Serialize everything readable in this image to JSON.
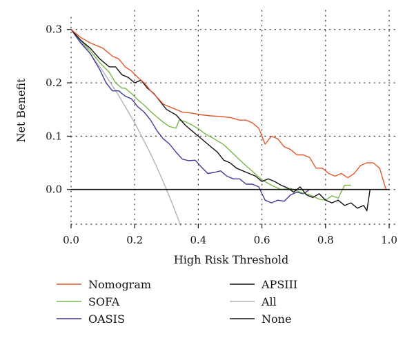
{
  "chart_data": {
    "type": "line",
    "xlabel": "High Risk Threshold",
    "ylabel": "Net Benefit",
    "xlim": [
      0.0,
      1.0
    ],
    "ylim": [
      -0.065,
      0.31
    ],
    "x_ticks": [
      "0.0",
      "0.2",
      "0.4",
      "0.6",
      "0.8",
      "1.0"
    ],
    "y_ticks": [
      "0.0",
      "0.1",
      "0.2",
      "0.3"
    ],
    "grid": "dotted",
    "legend_position": "bottom",
    "series": [
      {
        "name": "Nomogram",
        "color": "#e2562b",
        "x": [
          0,
          0.03,
          0.06,
          0.1,
          0.13,
          0.15,
          0.17,
          0.19,
          0.21,
          0.23,
          0.25,
          0.27,
          0.29,
          0.31,
          0.33,
          0.35,
          0.38,
          0.41,
          0.44,
          0.47,
          0.5,
          0.53,
          0.55,
          0.57,
          0.59,
          0.61,
          0.63,
          0.65,
          0.67,
          0.69,
          0.71,
          0.73,
          0.75,
          0.77,
          0.79,
          0.81,
          0.83,
          0.85,
          0.87,
          0.89,
          0.91,
          0.93,
          0.95,
          0.97,
          0.99
        ],
        "y": [
          0.3,
          0.285,
          0.275,
          0.265,
          0.25,
          0.245,
          0.23,
          0.222,
          0.21,
          0.2,
          0.185,
          0.173,
          0.16,
          0.155,
          0.15,
          0.145,
          0.143,
          0.14,
          0.138,
          0.137,
          0.135,
          0.13,
          0.13,
          0.125,
          0.115,
          0.085,
          0.1,
          0.095,
          0.08,
          0.075,
          0.065,
          0.065,
          0.06,
          0.04,
          0.04,
          0.03,
          0.025,
          0.03,
          0.022,
          0.03,
          0.045,
          0.05,
          0.05,
          0.04,
          0.0
        ]
      },
      {
        "name": "SOFA",
        "color": "#7ab648",
        "x": [
          0,
          0.03,
          0.06,
          0.09,
          0.12,
          0.14,
          0.16,
          0.17,
          0.19,
          0.21,
          0.23,
          0.25,
          0.27,
          0.29,
          0.31,
          0.33,
          0.34,
          0.36,
          0.38,
          0.4,
          0.42,
          0.45,
          0.48,
          0.51,
          0.54,
          0.57,
          0.6,
          0.63,
          0.66,
          0.69,
          0.72,
          0.75,
          0.78,
          0.8,
          0.82,
          0.84,
          0.86,
          0.88
        ],
        "y": [
          0.3,
          0.28,
          0.26,
          0.238,
          0.22,
          0.2,
          0.19,
          0.19,
          0.18,
          0.168,
          0.158,
          0.146,
          0.136,
          0.126,
          0.118,
          0.115,
          0.13,
          0.127,
          0.121,
          0.114,
          0.105,
          0.095,
          0.084,
          0.067,
          0.05,
          0.034,
          0.018,
          0.008,
          0.0,
          0.002,
          -0.005,
          -0.01,
          -0.018,
          -0.02,
          -0.012,
          -0.016,
          0.008,
          0.008
        ]
      },
      {
        "name": "OASIS",
        "color": "#3e3a96",
        "x": [
          0,
          0.03,
          0.06,
          0.09,
          0.11,
          0.13,
          0.15,
          0.17,
          0.19,
          0.21,
          0.23,
          0.25,
          0.27,
          0.29,
          0.31,
          0.33,
          0.35,
          0.37,
          0.39,
          0.41,
          0.43,
          0.45,
          0.47,
          0.49,
          0.51,
          0.53,
          0.55,
          0.57,
          0.59,
          0.61,
          0.63,
          0.65,
          0.67,
          0.69,
          0.71,
          0.73,
          0.75,
          0.77,
          0.79,
          0.81,
          0.83,
          0.85,
          0.87,
          0.89,
          0.91
        ],
        "y": [
          0.3,
          0.275,
          0.255,
          0.225,
          0.2,
          0.185,
          0.185,
          0.175,
          0.17,
          0.155,
          0.145,
          0.13,
          0.11,
          0.095,
          0.085,
          0.07,
          0.057,
          0.054,
          0.055,
          0.042,
          0.03,
          0.032,
          0.035,
          0.025,
          0.02,
          0.02,
          0.01,
          0.01,
          0.005,
          -0.02,
          -0.025,
          -0.02,
          -0.022,
          -0.01,
          -0.005,
          -0.008,
          0.0,
          0.0,
          0.0,
          0.0,
          0.0,
          0.0,
          0.0,
          0.0,
          0.0
        ]
      },
      {
        "name": "APSIII",
        "color": "#111111",
        "x": [
          0,
          0.03,
          0.06,
          0.09,
          0.12,
          0.14,
          0.16,
          0.18,
          0.2,
          0.22,
          0.24,
          0.26,
          0.28,
          0.3,
          0.33,
          0.36,
          0.38,
          0.4,
          0.42,
          0.44,
          0.46,
          0.48,
          0.5,
          0.52,
          0.54,
          0.56,
          0.58,
          0.6,
          0.62,
          0.64,
          0.66,
          0.68,
          0.7,
          0.72,
          0.74,
          0.76,
          0.78,
          0.8,
          0.82,
          0.84,
          0.86,
          0.88,
          0.9,
          0.92,
          0.93,
          0.94
        ],
        "y": [
          0.3,
          0.28,
          0.265,
          0.245,
          0.23,
          0.23,
          0.215,
          0.21,
          0.2,
          0.205,
          0.19,
          0.18,
          0.165,
          0.15,
          0.14,
          0.12,
          0.11,
          0.1,
          0.09,
          0.08,
          0.07,
          0.055,
          0.05,
          0.04,
          0.035,
          0.03,
          0.025,
          0.015,
          0.02,
          0.015,
          0.008,
          0.003,
          -0.005,
          0.005,
          -0.01,
          -0.015,
          -0.008,
          -0.02,
          -0.025,
          -0.02,
          -0.03,
          -0.025,
          -0.035,
          -0.03,
          -0.04,
          0.0
        ]
      },
      {
        "name": "All",
        "color": "#b3b3b3",
        "x": [
          0,
          0.05,
          0.1,
          0.15,
          0.2,
          0.25,
          0.28,
          0.3,
          0.32,
          0.345
        ],
        "y": [
          0.3,
          0.263,
          0.222,
          0.176,
          0.125,
          0.067,
          0.028,
          0.0,
          -0.029,
          -0.068
        ]
      },
      {
        "name": "None",
        "color": "#111111",
        "x": [
          0,
          1
        ],
        "y": [
          0,
          0
        ]
      }
    ]
  }
}
